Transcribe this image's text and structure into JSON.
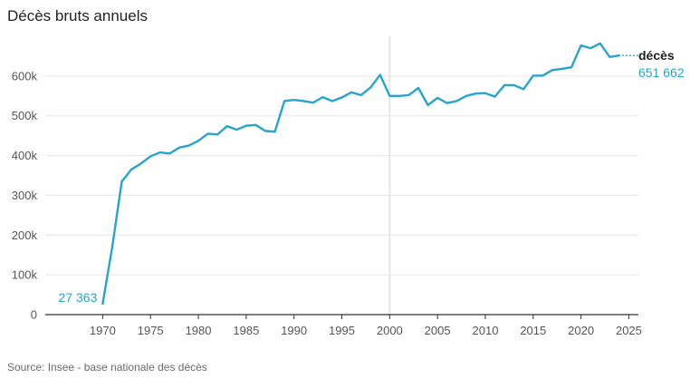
{
  "title": "Décès bruts annuels",
  "source": "Source: Insee - base nationale des décès",
  "colors": {
    "series": "#27a4cc",
    "grid": "#e6e6e6",
    "axis": "#333333",
    "text": "#555555",
    "label_dark": "#222222"
  },
  "chart_data": {
    "type": "line",
    "title": "Décès bruts annuels",
    "xlabel": "",
    "ylabel": "",
    "xlim": [
      1964,
      2026
    ],
    "ylim": [
      0,
      700000
    ],
    "grid": true,
    "x_ticks": [
      "1970",
      "1975",
      "1980",
      "1985",
      "1990",
      "1995",
      "2000",
      "2005",
      "2010",
      "2015",
      "2020",
      "2025"
    ],
    "y_ticks": [
      {
        "value": 0,
        "label": "0"
      },
      {
        "value": 100000,
        "label": "100k"
      },
      {
        "value": 200000,
        "label": "200k"
      },
      {
        "value": 300000,
        "label": "300k"
      },
      {
        "value": 400000,
        "label": "400k"
      },
      {
        "value": 500000,
        "label": "500k"
      },
      {
        "value": 600000,
        "label": "600k"
      }
    ],
    "series": [
      {
        "name": "décès",
        "x": [
          1970,
          1971,
          1972,
          1973,
          1974,
          1975,
          1976,
          1977,
          1978,
          1979,
          1980,
          1981,
          1982,
          1983,
          1984,
          1985,
          1986,
          1987,
          1988,
          1989,
          1990,
          1991,
          1992,
          1993,
          1994,
          1995,
          1996,
          1997,
          1998,
          1999,
          2000,
          2001,
          2002,
          2003,
          2004,
          2005,
          2006,
          2007,
          2008,
          2009,
          2010,
          2011,
          2012,
          2013,
          2014,
          2015,
          2016,
          2017,
          2018,
          2019,
          2020,
          2021,
          2022,
          2023,
          2024
        ],
        "values": [
          27363,
          170000,
          335000,
          365000,
          380000,
          398000,
          408000,
          405000,
          420000,
          425000,
          437000,
          455000,
          453000,
          474000,
          465000,
          475000,
          477000,
          462000,
          460000,
          537000,
          540000,
          537000,
          533000,
          547000,
          537000,
          546000,
          559000,
          552000,
          571000,
          603000,
          550000,
          550000,
          552000,
          570000,
          527000,
          545000,
          532000,
          537000,
          550000,
          556000,
          557000,
          548000,
          577000,
          577000,
          567000,
          601000,
          601000,
          615000,
          618000,
          622000,
          677000,
          670000,
          682000,
          648000,
          651662
        ]
      }
    ],
    "annotations": {
      "start_value": "27 363",
      "end_series": "décès",
      "end_value": "651 662"
    }
  }
}
